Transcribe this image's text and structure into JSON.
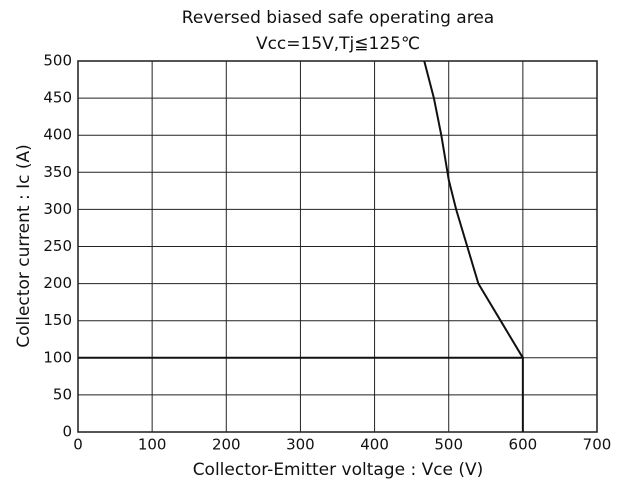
{
  "chart_data": {
    "type": "line",
    "title": "Reversed biased safe operating area",
    "subtitle": "Vcc=15V,Tj≦125℃",
    "x_label": "Collector-Emitter voltage : Vce (V)",
    "y_label": "Collector current : Ic (A)",
    "series": [
      {
        "color": "#111111",
        "x": [
          0,
          600,
          600
        ],
        "values": [
          100,
          100,
          0
        ]
      },
      {
        "color": "#111111",
        "x": [
          467,
          480,
          490,
          500,
          510,
          525,
          540,
          570,
          600
        ],
        "values": [
          500,
          450,
          400,
          340,
          300,
          250,
          200,
          150,
          100
        ]
      }
    ],
    "xlim": [
      0,
      700
    ],
    "xticks": [
      0,
      100,
      200,
      300,
      400,
      500,
      600,
      700
    ],
    "ylim": [
      0,
      500
    ],
    "yticks": [
      0,
      50,
      100,
      150,
      200,
      250,
      300,
      350,
      400,
      450,
      500
    ],
    "grid": true
  }
}
